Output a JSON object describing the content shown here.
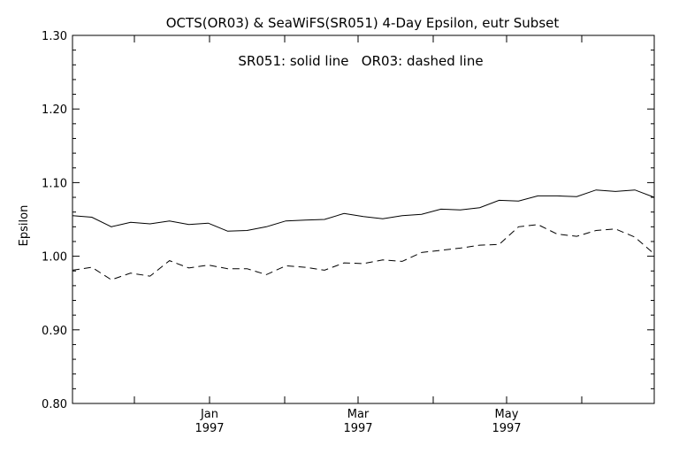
{
  "chart_data": {
    "type": "line",
    "title": "OCTS(OR03) & SeaWiFS(SR051) 4-Day Epsilon, eutr Subset",
    "annotation": "SR051: solid line   OR03: dashed line",
    "xlabel": "",
    "ylabel": "Epsilon",
    "ylim": [
      0.8,
      1.3
    ],
    "y_ticks": [
      "0.80",
      "0.90",
      "1.00",
      "1.10",
      "1.20",
      "1.30"
    ],
    "x_ticks": [
      {
        "month": "Jan",
        "year": "1997"
      },
      {
        "month": "Mar",
        "year": "1997"
      },
      {
        "month": "May",
        "year": "1997"
      }
    ],
    "grid": false,
    "series": [
      {
        "name": "SR051",
        "style": "solid",
        "color": "#000000",
        "values": [
          1.055,
          1.053,
          1.04,
          1.046,
          1.044,
          1.048,
          1.043,
          1.045,
          1.034,
          1.035,
          1.04,
          1.048,
          1.049,
          1.05,
          1.058,
          1.054,
          1.051,
          1.055,
          1.057,
          1.064,
          1.063,
          1.066,
          1.076,
          1.075,
          1.082,
          1.082,
          1.081,
          1.09,
          1.088,
          1.09,
          1.08
        ]
      },
      {
        "name": "OR03",
        "style": "dashed",
        "color": "#000000",
        "values": [
          0.981,
          0.985,
          0.968,
          0.977,
          0.973,
          0.994,
          0.984,
          0.988,
          0.983,
          0.983,
          0.975,
          0.987,
          0.985,
          0.981,
          0.991,
          0.99,
          0.995,
          0.993,
          1.005,
          1.008,
          1.011,
          1.015,
          1.016,
          1.04,
          1.043,
          1.03,
          1.027,
          1.035,
          1.037,
          1.026,
          1.003
        ]
      }
    ]
  }
}
